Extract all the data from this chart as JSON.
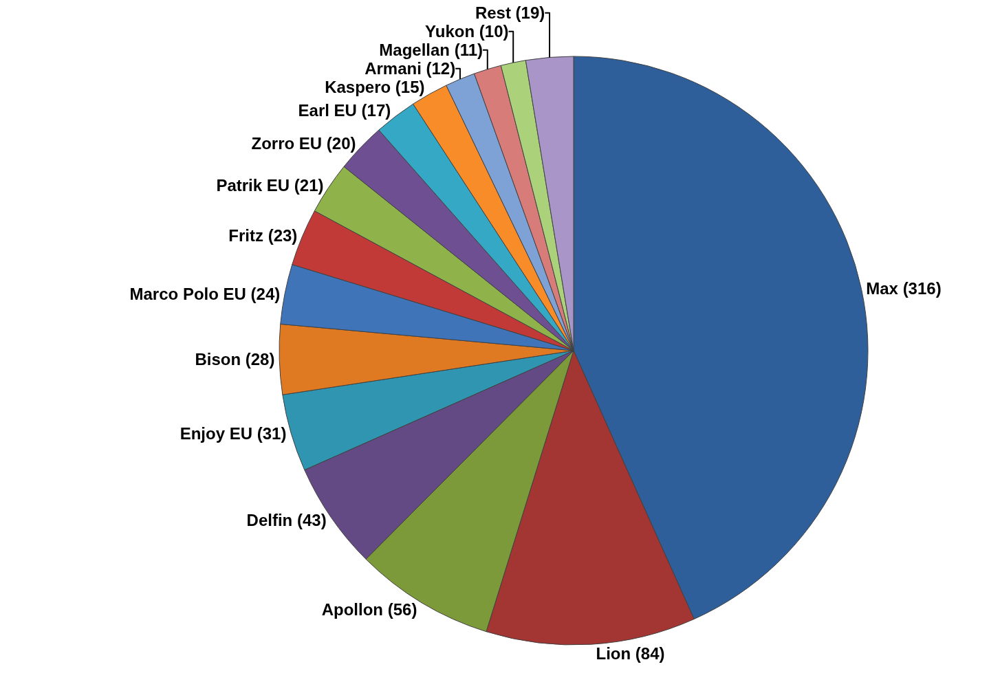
{
  "chart_data": {
    "type": "pie",
    "categories": [
      "Max (316)",
      "Lion (84)",
      "Apollon (56)",
      "Delfin (43)",
      "Enjoy EU (31)",
      "Bison (28)",
      "Marco Polo EU (24)",
      "Fritz (23)",
      "Patrik EU (21)",
      "Zorro EU (20)",
      "Earl EU (17)",
      "Kaspero (15)",
      "Armani (12)",
      "Magellan (11)",
      "Yukon (10)",
      "Rest (19)"
    ],
    "values": [
      316,
      84,
      56,
      43,
      31,
      28,
      24,
      23,
      21,
      20,
      17,
      15,
      12,
      11,
      10,
      19
    ],
    "colors": [
      "#2f5f9a",
      "#a33532",
      "#7d9a3a",
      "#634a85",
      "#2f95b0",
      "#e07a22",
      "#3f74b8",
      "#c23a37",
      "#8fb24a",
      "#6d4f92",
      "#35a8c6",
      "#f78c28",
      "#7ea2d6",
      "#d87c7a",
      "#abd27a",
      "#a995c8"
    ],
    "legend": false
  }
}
